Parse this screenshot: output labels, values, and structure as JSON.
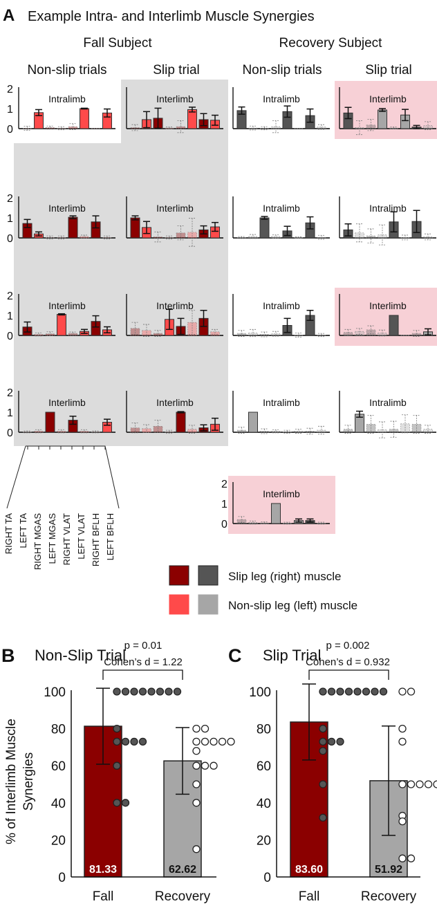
{
  "panel_a": {
    "letter": "A",
    "title": "Example Intra- and Interlimb Muscle Synergies",
    "groups": [
      "Fall Subject",
      "Recovery Subject"
    ],
    "columns": [
      "Non-slip trials",
      "Slip trial",
      "Non-slip trials",
      "Slip trial"
    ],
    "y_ticks": [
      "2",
      "1",
      "0"
    ],
    "muscles": [
      "RIGHT TA",
      "LEFT TA",
      "RIGHT MGAS",
      "LEFT MGAS",
      "RIGHT VLAT",
      "LEFT VLAT",
      "RIGHT BFLH",
      "LEFT BFLH"
    ],
    "legend": {
      "slip_leg": "Slip leg (right) muscle",
      "nonslip_leg": "Non-slip leg (left) muscle"
    }
  },
  "colors": {
    "fall_right": "#8b0000",
    "fall_left": "#ff4a4a",
    "rec_right": "#555555",
    "rec_left": "#a6a6a6",
    "gray_bg": "#dcdcdc",
    "pink_bg": "#f7d0d6"
  },
  "chart_data": [
    {
      "type": "bar",
      "name": "synergy-panels",
      "ylim": [
        0,
        2
      ],
      "panels": [
        {
          "subject": "fall",
          "col": 0,
          "row": 0,
          "label": "Intralimb",
          "values": [
            0.02,
            0.8,
            0.05,
            0.02,
            0.1,
            1.0,
            0.0,
            0.78
          ],
          "err": [
            0.1,
            0.15,
            0.08,
            0.08,
            0.15,
            0.02,
            0.0,
            0.2
          ],
          "faded": [
            1,
            0,
            1,
            1,
            1,
            0,
            1,
            0
          ],
          "bg": "none"
        },
        {
          "subject": "fall",
          "col": 1,
          "row": 0,
          "label": "Interlimb",
          "values": [
            0.05,
            0.45,
            0.52,
            0.03,
            0.1,
            0.95,
            0.45,
            0.42
          ],
          "err": [
            0.15,
            0.4,
            0.5,
            0.05,
            0.3,
            0.12,
            0.3,
            0.25
          ],
          "faded": [
            1,
            0,
            0,
            1,
            1,
            0,
            0,
            0
          ],
          "bg": "gray"
        },
        {
          "subject": "recovery",
          "col": 2,
          "row": 0,
          "label": "Intralimb",
          "values": [
            0.9,
            0.03,
            0.02,
            0.1,
            0.85,
            0.0,
            0.65,
            0.08
          ],
          "err": [
            0.18,
            0.1,
            0.08,
            0.3,
            0.28,
            0.0,
            0.33,
            0.12
          ],
          "faded": [
            0,
            1,
            1,
            1,
            0,
            1,
            0,
            1
          ],
          "bg": "none"
        },
        {
          "subject": "recovery",
          "col": 3,
          "row": 0,
          "label": "Interlimb",
          "values": [
            0.78,
            0.05,
            0.18,
            0.93,
            0.03,
            0.68,
            0.08,
            0.15
          ],
          "err": [
            0.28,
            0.35,
            0.28,
            0.07,
            0.05,
            0.28,
            0.08,
            0.2
          ],
          "faded": [
            0,
            1,
            1,
            0,
            1,
            0,
            0,
            1
          ],
          "bg": "pink"
        },
        {
          "subject": "fall",
          "col": 0,
          "row": 1,
          "label": "Interlimb",
          "values": [
            0.72,
            0.2,
            0.02,
            0.02,
            1.03,
            0.07,
            0.8,
            0.02
          ],
          "err": [
            0.2,
            0.1,
            0.08,
            0.08,
            0.07,
            0.07,
            0.3,
            0.08
          ],
          "faded": [
            0,
            0,
            1,
            1,
            0,
            1,
            0,
            1
          ],
          "bg": "gray"
        },
        {
          "subject": "fall",
          "col": 1,
          "row": 1,
          "label": "Interlimb",
          "values": [
            1.0,
            0.52,
            0.05,
            0.02,
            0.25,
            0.28,
            0.4,
            0.55
          ],
          "err": [
            0.1,
            0.3,
            0.25,
            0.08,
            0.35,
            0.7,
            0.2,
            0.22
          ],
          "faded": [
            0,
            0,
            1,
            1,
            1,
            1,
            0,
            0
          ],
          "bg": "gray"
        },
        {
          "subject": "recovery",
          "col": 2,
          "row": 1,
          "label": "Intralimb",
          "values": [
            0.02,
            0.07,
            1.0,
            0.07,
            0.35,
            0.02,
            0.75,
            0.03
          ],
          "err": [
            0.05,
            0.1,
            0.07,
            0.08,
            0.23,
            0.03,
            0.3,
            0.1
          ],
          "faded": [
            1,
            1,
            0,
            1,
            0,
            1,
            0,
            1
          ],
          "bg": "none"
        },
        {
          "subject": "recovery",
          "col": 3,
          "row": 1,
          "label": "Intralimb",
          "values": [
            0.4,
            0.25,
            0.1,
            0.15,
            0.8,
            0.02,
            0.82,
            0.05
          ],
          "err": [
            0.3,
            0.45,
            0.35,
            0.5,
            0.5,
            0.12,
            0.55,
            0.15
          ],
          "faded": [
            0,
            1,
            1,
            1,
            0,
            1,
            0,
            1
          ],
          "bg": "none"
        },
        {
          "subject": "fall",
          "col": 0,
          "row": 2,
          "label": "Interlimb",
          "values": [
            0.42,
            0.05,
            0.08,
            1.05,
            0.1,
            0.2,
            0.7,
            0.28
          ],
          "err": [
            0.25,
            0.08,
            0.1,
            0.03,
            0.07,
            0.1,
            0.28,
            0.15
          ],
          "faded": [
            0,
            1,
            1,
            0,
            1,
            0,
            0,
            0
          ],
          "bg": "gray"
        },
        {
          "subject": "fall",
          "col": 1,
          "row": 2,
          "label": "Interlimb",
          "values": [
            0.35,
            0.25,
            0.1,
            0.8,
            0.45,
            0.65,
            0.85,
            0.18
          ],
          "err": [
            0.3,
            0.3,
            0.15,
            0.5,
            0.4,
            0.6,
            0.4,
            0.12
          ],
          "faded": [
            1,
            1,
            1,
            0,
            0,
            1,
            0,
            1
          ],
          "bg": "gray"
        },
        {
          "subject": "recovery",
          "col": 2,
          "row": 2,
          "label": "Intralimb",
          "values": [
            0.1,
            0.12,
            0.05,
            0.08,
            0.5,
            0.02,
            1.0,
            0.02
          ],
          "err": [
            0.15,
            0.18,
            0.12,
            0.12,
            0.35,
            0.1,
            0.25,
            0.08
          ],
          "faded": [
            1,
            1,
            1,
            1,
            0,
            1,
            0,
            1
          ],
          "bg": "none"
        },
        {
          "subject": "recovery",
          "col": 3,
          "row": 2,
          "label": "Interlimb",
          "values": [
            0.15,
            0.2,
            0.28,
            0.12,
            1.0,
            0.0,
            0.1,
            0.18
          ],
          "err": [
            0.15,
            0.15,
            0.2,
            0.15,
            0.0,
            0.0,
            0.15,
            0.15
          ],
          "faded": [
            1,
            1,
            1,
            1,
            0,
            1,
            1,
            0
          ],
          "bg": "pink"
        },
        {
          "subject": "fall",
          "col": 0,
          "row": 3,
          "label": "Interlimb",
          "values": [
            0.02,
            0.05,
            1.0,
            0.05,
            0.6,
            0.05,
            0.02,
            0.5
          ],
          "err": [
            0.05,
            0.08,
            0.0,
            0.08,
            0.2,
            0.08,
            0.05,
            0.15
          ],
          "faded": [
            1,
            1,
            0,
            1,
            0,
            1,
            1,
            0
          ],
          "bg": "gray"
        },
        {
          "subject": "fall",
          "col": 1,
          "row": 3,
          "label": "Interlimb",
          "values": [
            0.22,
            0.18,
            0.3,
            0.02,
            1.0,
            0.15,
            0.22,
            0.4
          ],
          "err": [
            0.25,
            0.2,
            0.3,
            0.08,
            0.03,
            0.2,
            0.15,
            0.3
          ],
          "faded": [
            1,
            1,
            1,
            1,
            0,
            1,
            0,
            0
          ],
          "bg": "gray"
        },
        {
          "subject": "recovery",
          "col": 2,
          "row": 3,
          "label": "Intralimb",
          "values": [
            0.1,
            1.0,
            0.05,
            0.05,
            0.02,
            0.05,
            0.05,
            0.1
          ],
          "err": [
            0.15,
            0.0,
            0.12,
            0.08,
            0.08,
            0.1,
            0.15,
            0.2
          ],
          "faded": [
            1,
            0,
            1,
            1,
            1,
            1,
            1,
            1
          ],
          "bg": "none"
        },
        {
          "subject": "recovery",
          "col": 3,
          "row": 3,
          "label": "Intralimb",
          "values": [
            0.15,
            0.9,
            0.4,
            0.12,
            0.15,
            0.42,
            0.4,
            0.15
          ],
          "err": [
            0.2,
            0.15,
            0.45,
            0.4,
            0.4,
            0.45,
            0.45,
            0.2
          ],
          "faded": [
            1,
            0,
            1,
            1,
            1,
            1,
            1,
            1
          ],
          "bg": "none"
        },
        {
          "subject": "recovery",
          "col": 2,
          "row": 4,
          "label": "Interlimb",
          "values": [
            0.2,
            0.05,
            0.03,
            1.0,
            0.02,
            0.15,
            0.15,
            0.02
          ],
          "err": [
            0.15,
            0.08,
            0.05,
            0.0,
            0.05,
            0.08,
            0.08,
            0.05
          ],
          "faded": [
            1,
            1,
            1,
            0,
            1,
            0,
            0,
            1
          ],
          "bg": "pink"
        }
      ]
    },
    {
      "type": "bar",
      "name": "panel-b",
      "letter": "B",
      "title": "Non-Slip Trial",
      "p_text": "p = 0.01",
      "d_text": "Cohen’s d = 1.22",
      "ylabel_1": "% of Interlimb Muscle",
      "ylabel_2": "Synergies",
      "ylim": [
        0,
        100
      ],
      "y_ticks": [
        "0",
        "20",
        "40",
        "60",
        "80",
        "100"
      ],
      "categories": [
        "Fall",
        "Recovery"
      ],
      "values": [
        81.33,
        62.62
      ],
      "value_labels": [
        "81.33",
        "62.62"
      ],
      "sd": [
        20.5,
        18.0
      ],
      "points": [
        [
          100,
          100,
          100,
          100,
          100,
          100,
          100,
          100,
          80,
          73,
          73,
          73,
          73,
          60,
          40,
          40
        ],
        [
          80,
          80,
          73,
          73,
          73,
          73,
          73,
          68,
          60,
          60,
          60,
          50,
          40,
          15
        ]
      ]
    },
    {
      "type": "bar",
      "name": "panel-c",
      "letter": "C",
      "title": "Slip Trial",
      "p_text": "p = 0.002",
      "d_text": "Cohen’s d = 0.932",
      "ylim": [
        0,
        100
      ],
      "y_ticks": [
        "0",
        "20",
        "40",
        "60",
        "80",
        "100"
      ],
      "categories": [
        "Fall",
        "Recovery"
      ],
      "values": [
        83.6,
        51.92
      ],
      "value_labels": [
        "83.60",
        "51.92"
      ],
      "sd": [
        20.5,
        29.5
      ],
      "points": [
        [
          100,
          100,
          100,
          100,
          100,
          100,
          100,
          100,
          80,
          73,
          73,
          73,
          68,
          50,
          32
        ],
        [
          100,
          100,
          80,
          73,
          50,
          50,
          50,
          50,
          50,
          33,
          30,
          10,
          10
        ]
      ]
    }
  ]
}
